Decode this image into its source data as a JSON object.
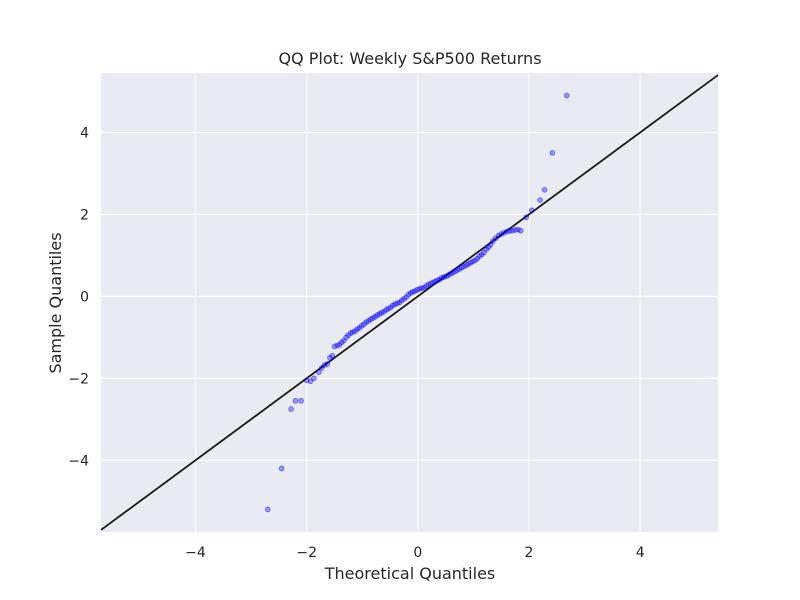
{
  "chart_data": {
    "type": "scatter",
    "title": "QQ Plot: Weekly S&P500 Returns",
    "xlabel": "Theoretical Quantiles",
    "ylabel": "Sample Quantiles",
    "xlim": [
      -5.7,
      5.4
    ],
    "ylim": [
      -5.75,
      5.45
    ],
    "x_ticks": [
      -4,
      -2,
      0,
      2,
      4
    ],
    "y_ticks": [
      -4,
      -2,
      0,
      2,
      4
    ],
    "grid": true,
    "colors": {
      "plot_background": "#eaeaf2",
      "grid": "#ffffff",
      "points": "#0000ff",
      "reference_line": "#1a1a1a"
    },
    "reference_line": {
      "slope": 1,
      "intercept": 0
    },
    "series": [
      {
        "x": [
          -2.7,
          -2.45,
          -2.28,
          -2.2,
          -2.1,
          -2.0,
          -1.93,
          -1.87,
          -1.78,
          -1.73,
          -1.68,
          -1.63,
          -1.58,
          -1.54,
          -1.5,
          -1.45,
          -1.41,
          -1.37,
          -1.33,
          -1.29,
          -1.25,
          -1.21,
          -1.17,
          -1.13,
          -1.09,
          -1.05,
          -1.01,
          -0.97,
          -0.93,
          -0.89,
          -0.85,
          -0.81,
          -0.77,
          -0.73,
          -0.69,
          -0.65,
          -0.61,
          -0.57,
          -0.53,
          -0.49,
          -0.45,
          -0.41,
          -0.37,
          -0.33,
          -0.29,
          -0.25,
          -0.21,
          -0.17,
          -0.13,
          -0.09,
          -0.05,
          -0.01,
          0.03,
          0.07,
          0.11,
          0.15,
          0.19,
          0.23,
          0.27,
          0.31,
          0.35,
          0.39,
          0.43,
          0.47,
          0.51,
          0.55,
          0.59,
          0.63,
          0.67,
          0.71,
          0.75,
          0.79,
          0.83,
          0.87,
          0.91,
          0.95,
          0.99,
          1.03,
          1.07,
          1.11,
          1.15,
          1.19,
          1.23,
          1.27,
          1.31,
          1.35,
          1.4,
          1.45,
          1.5,
          1.55,
          1.6,
          1.65,
          1.7,
          1.75,
          1.8,
          1.85,
          1.95,
          2.05,
          2.2,
          2.28,
          2.42,
          2.68
        ],
        "y": [
          -5.2,
          -4.2,
          -2.75,
          -2.55,
          -2.55,
          -2.05,
          -2.07,
          -2.0,
          -1.85,
          -1.75,
          -1.68,
          -1.65,
          -1.5,
          -1.45,
          -1.22,
          -1.2,
          -1.18,
          -1.12,
          -1.08,
          -1.0,
          -0.95,
          -0.9,
          -0.87,
          -0.85,
          -0.8,
          -0.77,
          -0.72,
          -0.68,
          -0.63,
          -0.6,
          -0.56,
          -0.53,
          -0.5,
          -0.46,
          -0.43,
          -0.4,
          -0.37,
          -0.33,
          -0.3,
          -0.27,
          -0.22,
          -0.19,
          -0.17,
          -0.15,
          -0.1,
          -0.06,
          -0.02,
          0.04,
          0.08,
          0.11,
          0.13,
          0.16,
          0.18,
          0.2,
          0.21,
          0.25,
          0.29,
          0.31,
          0.34,
          0.36,
          0.39,
          0.41,
          0.45,
          0.47,
          0.49,
          0.52,
          0.55,
          0.58,
          0.61,
          0.64,
          0.67,
          0.7,
          0.73,
          0.76,
          0.79,
          0.82,
          0.85,
          0.88,
          0.92,
          0.98,
          1.02,
          1.07,
          1.15,
          1.2,
          1.26,
          1.35,
          1.42,
          1.48,
          1.52,
          1.55,
          1.58,
          1.6,
          1.6,
          1.62,
          1.63,
          1.6,
          1.93,
          2.1,
          2.35,
          2.6,
          3.5,
          4.9
        ]
      }
    ]
  }
}
